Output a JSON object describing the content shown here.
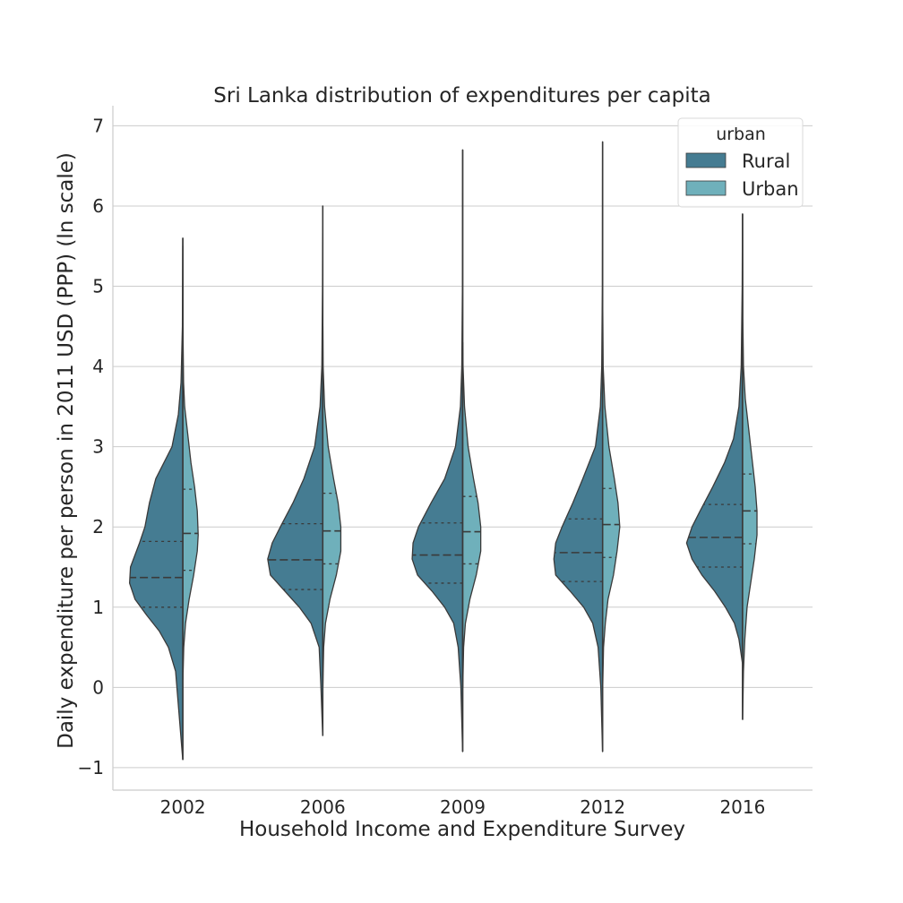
{
  "chart_data": {
    "type": "violin",
    "title": "Sri Lanka distribution of expenditures per capita",
    "xlabel": "Household Income and Expenditure Survey",
    "ylabel": "Daily expenditure per person in 2011 USD (PPP) (ln scale)",
    "ylim": [
      -1.28,
      7.25
    ],
    "yticks": [
      -1,
      0,
      1,
      2,
      3,
      4,
      5,
      6,
      7
    ],
    "ytick_labels": [
      "−1",
      "0",
      "1",
      "2",
      "3",
      "4",
      "5",
      "6",
      "7"
    ],
    "categories": [
      "2002",
      "2006",
      "2009",
      "2012",
      "2016"
    ],
    "grid": "y",
    "split": true,
    "inner": "quartile",
    "legend": {
      "title": "urban",
      "position": "top-right",
      "entries": [
        {
          "label": "Rural",
          "color": "#457c92"
        },
        {
          "label": "Urban",
          "color": "#6fb0bb"
        }
      ]
    },
    "series": [
      {
        "name": "Rural",
        "color": "#457c92",
        "side": "left",
        "quartiles": [
          [
            1.0,
            1.37,
            1.82
          ],
          [
            1.22,
            1.59,
            2.04
          ],
          [
            1.3,
            1.65,
            2.05
          ],
          [
            1.32,
            1.68,
            2.1
          ],
          [
            1.5,
            1.87,
            2.28
          ]
        ],
        "profiles": [
          {
            "y": [
              -0.9,
              0.2,
              0.5,
              0.7,
              0.9,
              1.1,
              1.3,
              1.5,
              1.8,
              2.0,
              2.3,
              2.6,
              3.0,
              3.4,
              3.8,
              4.5,
              5.6
            ],
            "w": [
              0.001,
              0.08,
              0.16,
              0.26,
              0.4,
              0.53,
              0.59,
              0.58,
              0.48,
              0.42,
              0.37,
              0.3,
              0.12,
              0.05,
              0.02,
              0.005,
              0.001
            ]
          },
          {
            "y": [
              -0.6,
              0.0,
              0.5,
              0.8,
              1.0,
              1.2,
              1.4,
              1.6,
              1.8,
              2.0,
              2.3,
              2.6,
              3.0,
              3.5,
              4.0,
              5.0,
              6.0
            ],
            "w": [
              0.001,
              0.02,
              0.04,
              0.13,
              0.26,
              0.42,
              0.58,
              0.61,
              0.56,
              0.47,
              0.33,
              0.21,
              0.09,
              0.03,
              0.01,
              0.003,
              0.001
            ]
          },
          {
            "y": [
              -0.8,
              0.0,
              0.5,
              0.8,
              1.0,
              1.2,
              1.4,
              1.6,
              1.8,
              2.0,
              2.3,
              2.6,
              3.0,
              3.5,
              4.0,
              5.0,
              6.7
            ],
            "w": [
              0.001,
              0.02,
              0.05,
              0.1,
              0.2,
              0.34,
              0.5,
              0.56,
              0.55,
              0.49,
              0.35,
              0.2,
              0.08,
              0.025,
              0.01,
              0.003,
              0.001
            ]
          },
          {
            "y": [
              -0.8,
              0.0,
              0.5,
              0.8,
              1.0,
              1.2,
              1.4,
              1.6,
              1.8,
              2.0,
              2.3,
              2.6,
              3.0,
              3.5,
              4.0,
              5.0,
              6.8
            ],
            "w": [
              0.001,
              0.02,
              0.05,
              0.11,
              0.21,
              0.36,
              0.52,
              0.54,
              0.52,
              0.45,
              0.33,
              0.22,
              0.08,
              0.025,
              0.01,
              0.003,
              0.001
            ]
          },
          {
            "y": [
              0.3,
              0.6,
              0.8,
              1.0,
              1.2,
              1.4,
              1.6,
              1.8,
              2.0,
              2.2,
              2.5,
              2.8,
              3.1,
              3.5,
              4.0,
              5.0,
              5.9
            ],
            "w": [
              0.001,
              0.04,
              0.09,
              0.19,
              0.31,
              0.45,
              0.56,
              0.62,
              0.56,
              0.47,
              0.33,
              0.2,
              0.1,
              0.04,
              0.015,
              0.004,
              0.001
            ]
          }
        ]
      },
      {
        "name": "Urban",
        "color": "#6fb0bb",
        "side": "right",
        "quartiles": [
          [
            1.46,
            1.92,
            2.47
          ],
          [
            1.54,
            1.95,
            2.42
          ],
          [
            1.54,
            1.94,
            2.38
          ],
          [
            1.62,
            2.03,
            2.48
          ],
          [
            1.79,
            2.2,
            2.66
          ]
        ],
        "profiles": [
          {
            "y": [
              0.1,
              0.5,
              0.8,
              1.1,
              1.4,
              1.7,
              1.9,
              2.2,
              2.5,
              2.8,
              3.1,
              3.5,
              3.8,
              4.3,
              5.0,
              5.5
            ],
            "w": [
              0.001,
              0.01,
              0.03,
              0.07,
              0.12,
              0.16,
              0.17,
              0.16,
              0.13,
              0.09,
              0.06,
              0.02,
              0.008,
              0.003,
              0.002,
              0.001
            ]
          },
          {
            "y": [
              0.0,
              0.5,
              0.8,
              1.1,
              1.4,
              1.7,
              2.0,
              2.3,
              2.6,
              3.0,
              3.5,
              4.0,
              4.5
            ],
            "w": [
              0.001,
              0.01,
              0.03,
              0.08,
              0.15,
              0.2,
              0.2,
              0.17,
              0.12,
              0.06,
              0.02,
              0.004,
              0.001
            ]
          },
          {
            "y": [
              0.0,
              0.5,
              0.8,
              1.1,
              1.4,
              1.7,
              2.0,
              2.3,
              2.6,
              3.0,
              3.5,
              4.0,
              4.3
            ],
            "w": [
              0.001,
              0.01,
              0.03,
              0.08,
              0.15,
              0.2,
              0.2,
              0.17,
              0.12,
              0.06,
              0.02,
              0.004,
              0.001
            ]
          },
          {
            "y": [
              0.0,
              0.5,
              0.8,
              1.1,
              1.4,
              1.7,
              2.0,
              2.3,
              2.6,
              3.0,
              3.5,
              4.0,
              4.8
            ],
            "w": [
              0.001,
              0.01,
              0.03,
              0.06,
              0.12,
              0.16,
              0.19,
              0.17,
              0.13,
              0.07,
              0.025,
              0.006,
              0.001
            ]
          },
          {
            "y": [
              -0.4,
              0.2,
              0.6,
              1.0,
              1.3,
              1.6,
              1.9,
              2.2,
              2.5,
              2.8,
              3.2,
              3.6,
              4.0,
              4.6,
              5.9
            ],
            "w": [
              0.001,
              0.01,
              0.025,
              0.05,
              0.09,
              0.13,
              0.16,
              0.16,
              0.14,
              0.11,
              0.07,
              0.03,
              0.01,
              0.003,
              0.001
            ]
          }
        ]
      }
    ]
  }
}
